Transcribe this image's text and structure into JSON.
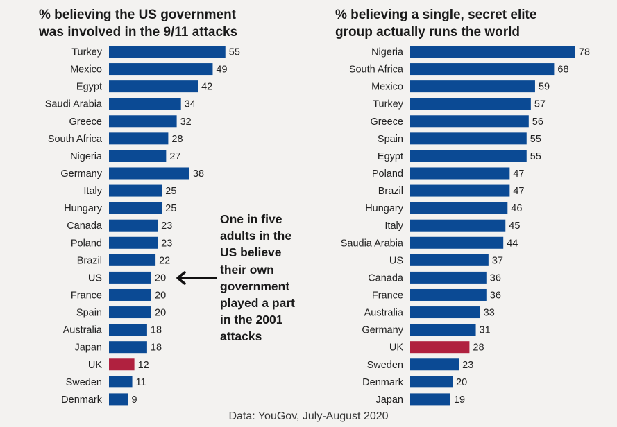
{
  "chart_data": [
    {
      "type": "bar",
      "orientation": "horizontal",
      "title": "% believing the US government\nwas involved in the 9/11 attacks",
      "categories": [
        "Turkey",
        "Mexico",
        "Egypt",
        "Saudi Arabia",
        "Greece",
        "South Africa",
        "Nigeria",
        "Germany",
        "Italy",
        "Hungary",
        "Canada",
        "Poland",
        "Brazil",
        "US",
        "France",
        "Spain",
        "Australia",
        "Japan",
        "UK",
        "Sweden",
        "Denmark"
      ],
      "values": [
        55,
        49,
        42,
        34,
        32,
        28,
        27,
        38,
        25,
        25,
        23,
        23,
        22,
        20,
        20,
        20,
        18,
        18,
        12,
        11,
        9
      ],
      "highlight": "UK",
      "bar_color": "#0b4a94",
      "highlight_color": "#b0213f",
      "xlabel": "",
      "ylabel": "",
      "grid": false
    },
    {
      "type": "bar",
      "orientation": "horizontal",
      "title": "% believing a single, secret elite\ngroup actually runs the world",
      "categories": [
        "Nigeria",
        "South Africa",
        "Mexico",
        "Turkey",
        "Greece",
        "Spain",
        "Egypt",
        "Poland",
        "Brazil",
        "Hungary",
        "Italy",
        "Saudia Arabia",
        "US",
        "Canada",
        "France",
        "Australia",
        "Germany",
        "UK",
        "Sweden",
        "Denmark",
        "Japan"
      ],
      "values": [
        78,
        68,
        59,
        57,
        56,
        55,
        55,
        47,
        47,
        46,
        45,
        44,
        37,
        36,
        36,
        33,
        31,
        28,
        23,
        20,
        19
      ],
      "highlight": "UK",
      "bar_color": "#0b4a94",
      "highlight_color": "#b0213f",
      "xlabel": "",
      "ylabel": "",
      "grid": false
    }
  ],
  "annotation": {
    "text": "One in five\nadults in the\nUS believe\ntheir own\ngovernment\nplayed a part\nin the 2001\nattacks",
    "points_to": "US"
  },
  "source": "Data: YouGov, July-August 2020",
  "colors": {
    "background": "#f3f2f0"
  }
}
